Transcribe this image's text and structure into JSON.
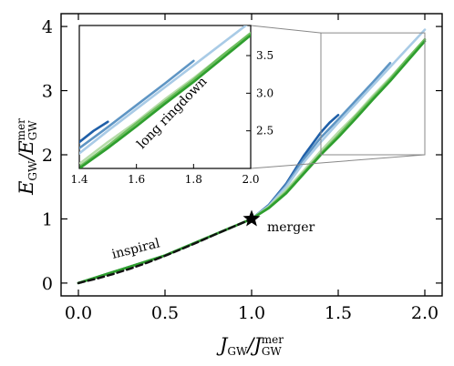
{
  "chart_data": {
    "type": "line",
    "xlabel": "J_GW / J_GW^mer",
    "ylabel": "E_GW / E_GW^mer",
    "xlim": [
      -0.1,
      2.1
    ],
    "ylim": [
      -0.2,
      4.2
    ],
    "xticks": [
      "0.0",
      "0.5",
      "1.0",
      "1.5",
      "2.0"
    ],
    "yticks": [
      "0",
      "1",
      "2",
      "3",
      "4"
    ],
    "legend": "none",
    "grid": false,
    "annotations": {
      "inspiral": "inspiral",
      "merger": "merger",
      "ringdown": "long ringdown"
    },
    "merger_point": {
      "x": 1.0,
      "y": 1.0,
      "marker": "star"
    },
    "series": [
      {
        "style": "dashed",
        "color": "#111111",
        "x": [
          0.0,
          0.1,
          0.2,
          0.3,
          0.4,
          0.5,
          0.6,
          0.7,
          0.8,
          0.9,
          1.0
        ],
        "y": [
          0.0,
          0.065,
          0.14,
          0.225,
          0.32,
          0.425,
          0.535,
          0.65,
          0.77,
          0.885,
          1.0
        ]
      },
      {
        "color": "#1f5fa8",
        "x": [
          0.0,
          0.5,
          1.0,
          1.1,
          1.2,
          1.3,
          1.4,
          1.45,
          1.5
        ],
        "y": [
          0.0,
          0.43,
          1.0,
          1.22,
          1.55,
          1.98,
          2.35,
          2.5,
          2.62
        ]
      },
      {
        "color": "#5e95c4",
        "x": [
          0.0,
          0.5,
          1.0,
          1.1,
          1.2,
          1.3,
          1.4,
          1.5,
          1.6,
          1.7,
          1.8
        ],
        "y": [
          0.0,
          0.43,
          1.0,
          1.21,
          1.53,
          1.93,
          2.27,
          2.55,
          2.84,
          3.13,
          3.43
        ]
      },
      {
        "color": "#a9cbe6",
        "x": [
          0.0,
          0.5,
          1.0,
          1.1,
          1.2,
          1.3,
          1.4,
          1.5,
          1.6,
          1.7,
          1.8,
          1.9,
          2.0
        ],
        "y": [
          0.0,
          0.43,
          1.0,
          1.2,
          1.5,
          1.88,
          2.2,
          2.5,
          2.79,
          3.08,
          3.37,
          3.66,
          3.95
        ]
      },
      {
        "color": "#b6dca9",
        "x": [
          0.0,
          0.5,
          1.0,
          1.1,
          1.2,
          1.3,
          1.4,
          1.5,
          1.6,
          1.7,
          1.8,
          1.9,
          2.0
        ],
        "y": [
          0.0,
          0.43,
          1.0,
          1.19,
          1.45,
          1.75,
          2.06,
          2.35,
          2.62,
          2.92,
          3.2,
          3.5,
          3.79
        ]
      },
      {
        "color": "#6ebf5f",
        "x": [
          0.0,
          0.5,
          1.0,
          1.1,
          1.2,
          1.3,
          1.4,
          1.5,
          1.6,
          1.7,
          1.8,
          1.9,
          2.0
        ],
        "y": [
          0.0,
          0.43,
          1.0,
          1.18,
          1.42,
          1.72,
          2.02,
          2.3,
          2.6,
          2.89,
          3.18,
          3.5,
          3.8
        ]
      },
      {
        "color": "#2e9e2e",
        "x": [
          0.0,
          0.5,
          1.0,
          1.1,
          1.2,
          1.3,
          1.4,
          1.5,
          1.6,
          1.7,
          1.8,
          1.9,
          2.0
        ],
        "y": [
          0.0,
          0.43,
          1.0,
          1.17,
          1.4,
          1.7,
          2.0,
          2.27,
          2.56,
          2.86,
          3.15,
          3.46,
          3.77
        ]
      }
    ],
    "inset": {
      "xlim": [
        1.4,
        2.0
      ],
      "ylim": [
        2.0,
        3.9
      ],
      "xticks": [
        "1.4",
        "1.6",
        "1.8",
        "2.0"
      ],
      "yticks": [
        "2.5",
        "3.0",
        "3.5"
      ]
    }
  }
}
